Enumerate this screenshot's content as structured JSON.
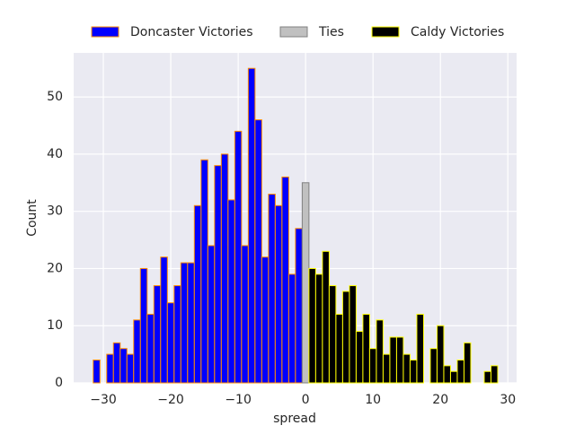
{
  "chart_data": {
    "type": "histogram",
    "xlabel": "spread",
    "ylabel": "Count",
    "xlim": [
      -34.4,
      31.3
    ],
    "ylim": [
      0,
      57.7
    ],
    "xticks": [
      {
        "value": -30,
        "label": "−30"
      },
      {
        "value": -20,
        "label": "−20"
      },
      {
        "value": -10,
        "label": "−10"
      },
      0,
      10,
      20,
      30
    ],
    "yticks": [
      0,
      10,
      20,
      30,
      40,
      50
    ],
    "grid": true,
    "legend": "upper center outside",
    "series": [
      {
        "name": "Doncaster Victories",
        "color": "#0000ff",
        "edgecolor": "#ff8c00",
        "bins": [
          -31.5,
          -30.5,
          -29.5,
          -28.5,
          -27.5,
          -26.5,
          -25.5,
          -24.5,
          -23.5,
          -22.5,
          -21.5,
          -20.5,
          -19.5,
          -18.5,
          -17.5,
          -16.5,
          -15.5,
          -14.5,
          -13.5,
          -12.5,
          -11.5,
          -10.5,
          -9.5,
          -8.5,
          -7.5,
          -6.5,
          -5.5,
          -4.5,
          -3.5,
          -2.5,
          -1.5,
          -0.5
        ],
        "values": [
          4,
          0,
          5,
          7,
          6,
          5,
          11,
          20,
          12,
          17,
          22,
          14,
          17,
          21,
          21,
          31,
          39,
          24,
          38,
          40,
          32,
          44,
          24,
          55,
          46,
          22,
          33,
          31,
          36,
          19,
          27
        ]
      },
      {
        "name": "Ties",
        "color": "#c0c0c0",
        "edgecolor": "#808080",
        "bins": [
          -0.5,
          0.5
        ],
        "values": [
          35
        ]
      },
      {
        "name": "Caldy Victories",
        "color": "#000000",
        "edgecolor": "#ffff00",
        "bins": [
          0.5,
          1.5,
          2.5,
          3.5,
          4.5,
          5.5,
          6.5,
          7.5,
          8.5,
          9.5,
          10.5,
          11.5,
          12.5,
          13.5,
          14.5,
          15.5,
          16.5,
          17.5,
          18.5,
          19.5,
          20.5,
          21.5,
          22.5,
          23.5,
          24.5,
          25.5,
          26.5,
          27.5,
          28.5
        ],
        "values": [
          20,
          19,
          23,
          17,
          12,
          16,
          17,
          9,
          12,
          6,
          11,
          5,
          8,
          8,
          5,
          4,
          12,
          0,
          6,
          10,
          3,
          2,
          4,
          7,
          0,
          0,
          2,
          3
        ]
      }
    ]
  }
}
